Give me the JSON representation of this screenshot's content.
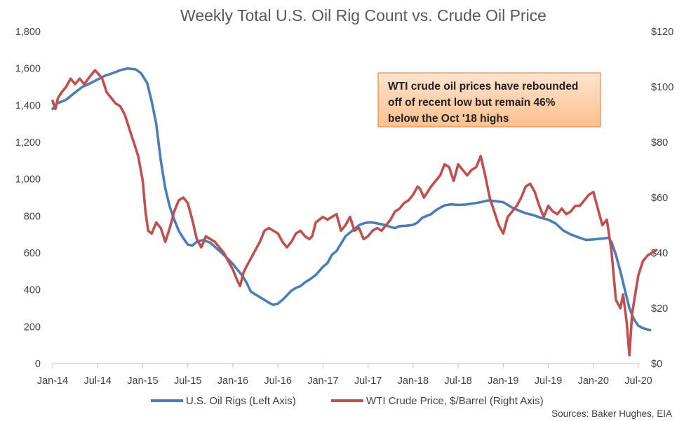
{
  "chart_data": {
    "type": "line",
    "title": "Weekly Total U.S. Oil Rig Count vs. Crude Oil Price",
    "x_ticks": [
      "Jan-14",
      "Jul-14",
      "Jan-15",
      "Jul-15",
      "Jan-16",
      "Jul-16",
      "Jan-17",
      "Jul-17",
      "Jan-18",
      "Jul-18",
      "Jan-19",
      "Jul-19",
      "Jan-20",
      "Jul-20"
    ],
    "xlim": [
      "2014-01",
      "2020-07"
    ],
    "y_left": {
      "ticks": [
        "0",
        "200",
        "400",
        "600",
        "800",
        "1,000",
        "1,200",
        "1,400",
        "1,600",
        "1,800"
      ],
      "ylim": [
        0,
        1800
      ]
    },
    "y_right": {
      "ticks": [
        "$0",
        "$20",
        "$40",
        "$60",
        "$80",
        "$100",
        "$120"
      ],
      "ylim": [
        0,
        120
      ]
    },
    "series": [
      {
        "name": "U.S. Oil Rigs (Left Axis)",
        "axis": "left",
        "color": "#4a7ebb",
        "points": [
          [
            2014.0,
            1380
          ],
          [
            2014.05,
            1410
          ],
          [
            2014.1,
            1420
          ],
          [
            2014.15,
            1430
          ],
          [
            2014.25,
            1470
          ],
          [
            2014.33,
            1500
          ],
          [
            2014.42,
            1520
          ],
          [
            2014.5,
            1540
          ],
          [
            2014.58,
            1560
          ],
          [
            2014.67,
            1575
          ],
          [
            2014.75,
            1590
          ],
          [
            2014.83,
            1600
          ],
          [
            2014.92,
            1595
          ],
          [
            2014.98,
            1575
          ],
          [
            2015.05,
            1520
          ],
          [
            2015.1,
            1420
          ],
          [
            2015.15,
            1300
          ],
          [
            2015.2,
            1100
          ],
          [
            2015.25,
            950
          ],
          [
            2015.3,
            850
          ],
          [
            2015.35,
            780
          ],
          [
            2015.4,
            720
          ],
          [
            2015.45,
            680
          ],
          [
            2015.5,
            645
          ],
          [
            2015.55,
            640
          ],
          [
            2015.6,
            660
          ],
          [
            2015.67,
            670
          ],
          [
            2015.75,
            655
          ],
          [
            2015.83,
            620
          ],
          [
            2015.92,
            580
          ],
          [
            2016.0,
            540
          ],
          [
            2016.05,
            510
          ],
          [
            2016.1,
            480
          ],
          [
            2016.15,
            440
          ],
          [
            2016.2,
            390
          ],
          [
            2016.25,
            375
          ],
          [
            2016.3,
            360
          ],
          [
            2016.35,
            345
          ],
          [
            2016.4,
            330
          ],
          [
            2016.45,
            318
          ],
          [
            2016.5,
            325
          ],
          [
            2016.55,
            345
          ],
          [
            2016.6,
            370
          ],
          [
            2016.65,
            395
          ],
          [
            2016.7,
            410
          ],
          [
            2016.75,
            420
          ],
          [
            2016.8,
            440
          ],
          [
            2016.85,
            455
          ],
          [
            2016.92,
            480
          ],
          [
            2017.0,
            525
          ],
          [
            2017.05,
            545
          ],
          [
            2017.1,
            590
          ],
          [
            2017.15,
            610
          ],
          [
            2017.2,
            650
          ],
          [
            2017.25,
            690
          ],
          [
            2017.3,
            710
          ],
          [
            2017.35,
            730
          ],
          [
            2017.4,
            750
          ],
          [
            2017.45,
            760
          ],
          [
            2017.5,
            765
          ],
          [
            2017.55,
            765
          ],
          [
            2017.6,
            760
          ],
          [
            2017.65,
            755
          ],
          [
            2017.7,
            750
          ],
          [
            2017.75,
            740
          ],
          [
            2017.8,
            735
          ],
          [
            2017.85,
            745
          ],
          [
            2017.92,
            747
          ],
          [
            2018.0,
            752
          ],
          [
            2018.05,
            765
          ],
          [
            2018.1,
            790
          ],
          [
            2018.15,
            800
          ],
          [
            2018.2,
            810
          ],
          [
            2018.25,
            830
          ],
          [
            2018.3,
            845
          ],
          [
            2018.35,
            858
          ],
          [
            2018.42,
            863
          ],
          [
            2018.5,
            860
          ],
          [
            2018.58,
            862
          ],
          [
            2018.67,
            868
          ],
          [
            2018.75,
            875
          ],
          [
            2018.83,
            884
          ],
          [
            2018.92,
            880
          ],
          [
            2019.0,
            875
          ],
          [
            2019.05,
            860
          ],
          [
            2019.1,
            845
          ],
          [
            2019.17,
            830
          ],
          [
            2019.25,
            815
          ],
          [
            2019.33,
            805
          ],
          [
            2019.42,
            790
          ],
          [
            2019.5,
            780
          ],
          [
            2019.58,
            760
          ],
          [
            2019.67,
            720
          ],
          [
            2019.75,
            700
          ],
          [
            2019.83,
            685
          ],
          [
            2019.92,
            670
          ],
          [
            2020.0,
            673
          ],
          [
            2020.1,
            678
          ],
          [
            2020.17,
            682
          ],
          [
            2020.2,
            660
          ],
          [
            2020.25,
            590
          ],
          [
            2020.3,
            500
          ],
          [
            2020.35,
            400
          ],
          [
            2020.4,
            300
          ],
          [
            2020.45,
            240
          ],
          [
            2020.5,
            205
          ],
          [
            2020.55,
            192
          ],
          [
            2020.6,
            185
          ],
          [
            2020.63,
            181
          ]
        ]
      },
      {
        "name": "WTI Crude Price, $/Barrel (Right Axis)",
        "axis": "right",
        "color": "#c0504d",
        "points": [
          [
            2014.0,
            95
          ],
          [
            2014.03,
            92
          ],
          [
            2014.06,
            96
          ],
          [
            2014.1,
            98
          ],
          [
            2014.15,
            100
          ],
          [
            2014.2,
            103
          ],
          [
            2014.25,
            101
          ],
          [
            2014.3,
            103
          ],
          [
            2014.35,
            101
          ],
          [
            2014.42,
            104
          ],
          [
            2014.47,
            106
          ],
          [
            2014.5,
            105
          ],
          [
            2014.55,
            103
          ],
          [
            2014.6,
            98
          ],
          [
            2014.65,
            96
          ],
          [
            2014.7,
            94
          ],
          [
            2014.75,
            93
          ],
          [
            2014.8,
            90
          ],
          [
            2014.85,
            85
          ],
          [
            2014.9,
            80
          ],
          [
            2014.95,
            75
          ],
          [
            2015.0,
            66
          ],
          [
            2015.03,
            55
          ],
          [
            2015.06,
            48
          ],
          [
            2015.1,
            47
          ],
          [
            2015.15,
            51
          ],
          [
            2015.2,
            49
          ],
          [
            2015.25,
            44
          ],
          [
            2015.3,
            49
          ],
          [
            2015.35,
            55
          ],
          [
            2015.4,
            59
          ],
          [
            2015.45,
            60
          ],
          [
            2015.5,
            58
          ],
          [
            2015.55,
            52
          ],
          [
            2015.6,
            45
          ],
          [
            2015.65,
            42
          ],
          [
            2015.7,
            46
          ],
          [
            2015.75,
            45
          ],
          [
            2015.8,
            44
          ],
          [
            2015.85,
            42
          ],
          [
            2015.9,
            40
          ],
          [
            2015.95,
            37
          ],
          [
            2016.0,
            34
          ],
          [
            2016.05,
            30
          ],
          [
            2016.08,
            28
          ],
          [
            2016.12,
            33
          ],
          [
            2016.15,
            35
          ],
          [
            2016.2,
            38
          ],
          [
            2016.25,
            41
          ],
          [
            2016.3,
            44
          ],
          [
            2016.35,
            48
          ],
          [
            2016.4,
            49
          ],
          [
            2016.45,
            48
          ],
          [
            2016.5,
            47
          ],
          [
            2016.55,
            44
          ],
          [
            2016.6,
            42
          ],
          [
            2016.65,
            44
          ],
          [
            2016.7,
            47
          ],
          [
            2016.75,
            48
          ],
          [
            2016.8,
            46
          ],
          [
            2016.85,
            45
          ],
          [
            2016.88,
            46
          ],
          [
            2016.92,
            51
          ],
          [
            2016.96,
            52
          ],
          [
            2017.0,
            53
          ],
          [
            2017.05,
            52
          ],
          [
            2017.1,
            53
          ],
          [
            2017.15,
            54
          ],
          [
            2017.2,
            48
          ],
          [
            2017.25,
            50
          ],
          [
            2017.3,
            53
          ],
          [
            2017.35,
            48
          ],
          [
            2017.4,
            49
          ],
          [
            2017.45,
            45
          ],
          [
            2017.5,
            46
          ],
          [
            2017.55,
            48
          ],
          [
            2017.6,
            49
          ],
          [
            2017.65,
            48
          ],
          [
            2017.7,
            50
          ],
          [
            2017.75,
            52
          ],
          [
            2017.8,
            55
          ],
          [
            2017.85,
            56
          ],
          [
            2017.9,
            58
          ],
          [
            2017.95,
            59
          ],
          [
            2018.0,
            61
          ],
          [
            2018.05,
            64
          ],
          [
            2018.08,
            63
          ],
          [
            2018.12,
            60
          ],
          [
            2018.16,
            62
          ],
          [
            2018.2,
            64
          ],
          [
            2018.25,
            66
          ],
          [
            2018.3,
            68
          ],
          [
            2018.35,
            72
          ],
          [
            2018.4,
            71
          ],
          [
            2018.45,
            66
          ],
          [
            2018.5,
            72
          ],
          [
            2018.55,
            70
          ],
          [
            2018.6,
            68
          ],
          [
            2018.65,
            70
          ],
          [
            2018.7,
            71
          ],
          [
            2018.75,
            75
          ],
          [
            2018.8,
            68
          ],
          [
            2018.85,
            60
          ],
          [
            2018.9,
            55
          ],
          [
            2018.95,
            50
          ],
          [
            2019.0,
            47
          ],
          [
            2019.05,
            53
          ],
          [
            2019.1,
            55
          ],
          [
            2019.15,
            57
          ],
          [
            2019.2,
            60
          ],
          [
            2019.25,
            64
          ],
          [
            2019.3,
            65
          ],
          [
            2019.35,
            62
          ],
          [
            2019.4,
            57
          ],
          [
            2019.45,
            53
          ],
          [
            2019.5,
            57
          ],
          [
            2019.55,
            55
          ],
          [
            2019.6,
            54
          ],
          [
            2019.65,
            56
          ],
          [
            2019.7,
            54
          ],
          [
            2019.75,
            55
          ],
          [
            2019.8,
            57
          ],
          [
            2019.85,
            57
          ],
          [
            2019.9,
            59
          ],
          [
            2019.95,
            61
          ],
          [
            2020.0,
            62
          ],
          [
            2020.05,
            56
          ],
          [
            2020.1,
            50
          ],
          [
            2020.15,
            52
          ],
          [
            2020.2,
            41
          ],
          [
            2020.25,
            23
          ],
          [
            2020.3,
            20
          ],
          [
            2020.33,
            25
          ],
          [
            2020.37,
            15
          ],
          [
            2020.4,
            3
          ],
          [
            2020.43,
            18
          ],
          [
            2020.47,
            26
          ],
          [
            2020.5,
            32
          ],
          [
            2020.55,
            37
          ],
          [
            2020.6,
            39
          ],
          [
            2020.65,
            40
          ],
          [
            2020.7,
            41
          ]
        ]
      }
    ],
    "legend": {
      "position": "bottom",
      "entries": [
        "U.S. Oil Rigs (Left Axis)",
        "WTI Crude Price, $/Barrel (Right Axis)"
      ]
    },
    "annotation": {
      "lines": [
        "WTI crude oil prices have rebounded",
        "off of recent low but remain 46%",
        "below the Oct '18 highs"
      ],
      "background": "#fbc9a3",
      "border": "#e8893f"
    },
    "source": "Sources: Baker Hughes, EIA",
    "grid": false
  }
}
